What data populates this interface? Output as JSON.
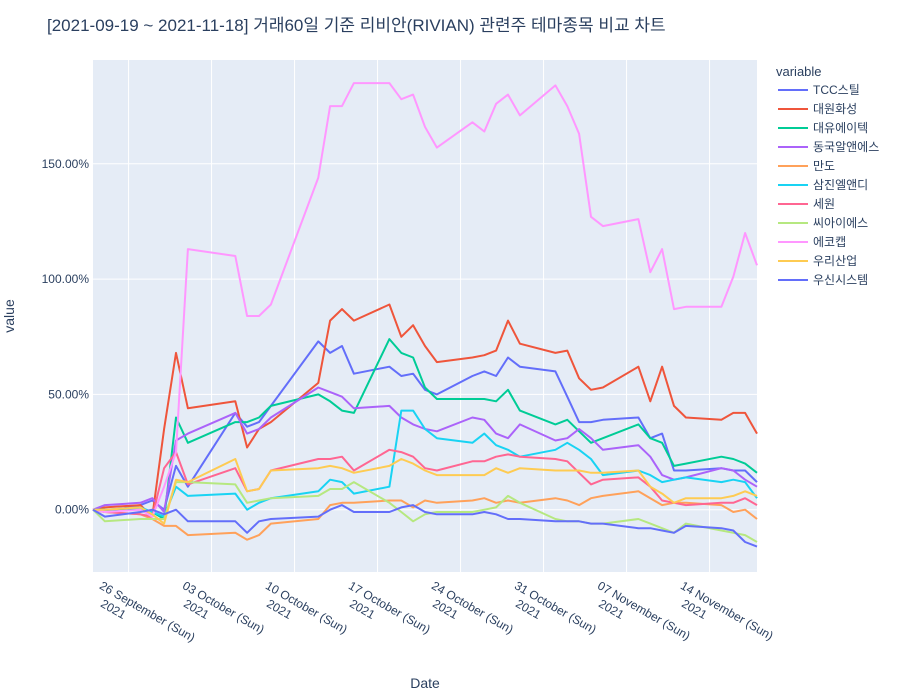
{
  "chart_data": {
    "type": "line",
    "title": "[2021-09-19 ~ 2021-11-18] 거래60일 기준 리비안(RIVIAN) 관련주 테마종목 비교 차트",
    "x_label": "Date",
    "y_label": "value",
    "legend_title": "variable",
    "legend": "right",
    "grid": true,
    "x": [
      "2021-09-23",
      "2021-09-24",
      "2021-09-27",
      "2021-09-28",
      "2021-09-29",
      "2021-09-30",
      "2021-10-01",
      "2021-10-05",
      "2021-10-06",
      "2021-10-07",
      "2021-10-08",
      "2021-10-12",
      "2021-10-13",
      "2021-10-14",
      "2021-10-15",
      "2021-10-18",
      "2021-10-19",
      "2021-10-20",
      "2021-10-21",
      "2021-10-22",
      "2021-10-25",
      "2021-10-26",
      "2021-10-27",
      "2021-10-28",
      "2021-10-29",
      "2021-11-01",
      "2021-11-02",
      "2021-11-03",
      "2021-11-04",
      "2021-11-05",
      "2021-11-08",
      "2021-11-09",
      "2021-11-10",
      "2021-11-11",
      "2021-11-12",
      "2021-11-15",
      "2021-11-16",
      "2021-11-17",
      "2021-11-18"
    ],
    "xlim": [
      "2021-09-23",
      "2021-11-18"
    ],
    "xticks": [
      {
        "value": "2021-09-26",
        "label": "26 September (Sun)\n2021"
      },
      {
        "value": "2021-10-03",
        "label": "03 October (Sun)\n2021"
      },
      {
        "value": "2021-10-10",
        "label": "10 October (Sun)\n2021"
      },
      {
        "value": "2021-10-17",
        "label": "17 October (Sun)\n2021"
      },
      {
        "value": "2021-10-24",
        "label": "24 October (Sun)\n2021"
      },
      {
        "value": "2021-10-31",
        "label": "31 October (Sun)\n2021"
      },
      {
        "value": "2021-11-07",
        "label": "07 November (Sun)\n2021"
      },
      {
        "value": "2021-11-14",
        "label": "14 November (Sun)\n2021"
      }
    ],
    "ylim": [
      -27,
      195
    ],
    "yticks": [
      {
        "value": 0,
        "label": "0.00%"
      },
      {
        "value": 50,
        "label": "50.00%"
      },
      {
        "value": 100,
        "label": "100.00%"
      },
      {
        "value": 150,
        "label": "150.00%"
      }
    ],
    "series": [
      {
        "name": "TCC스틸",
        "color": "#636efa",
        "values": [
          0,
          -1,
          2,
          4,
          0,
          19,
          10,
          42,
          36,
          38,
          45,
          73,
          68,
          71,
          59,
          62,
          58,
          59,
          52,
          50,
          58,
          60,
          58,
          66,
          62,
          60,
          49,
          38,
          38,
          39,
          40,
          31,
          33,
          17,
          17,
          18,
          17,
          17,
          12
        ]
      },
      {
        "name": "대원화성",
        "color": "#EF553B",
        "values": [
          0,
          1,
          2,
          -3,
          35,
          68,
          44,
          47,
          27,
          35,
          38,
          55,
          82,
          87,
          82,
          89,
          75,
          80,
          71,
          64,
          66,
          67,
          69,
          82,
          72,
          68,
          69,
          57,
          52,
          53,
          62,
          47,
          62,
          45,
          40,
          39,
          42,
          42,
          33
        ]
      },
      {
        "name": "대유에이텍",
        "color": "#00cc96",
        "values": [
          0,
          0,
          0,
          -1,
          -4,
          40,
          29,
          38,
          38,
          40,
          45,
          50,
          47,
          43,
          42,
          74,
          68,
          66,
          53,
          48,
          48,
          48,
          47,
          52,
          43,
          37,
          39,
          34,
          29,
          31,
          37,
          31,
          29,
          19,
          20,
          23,
          22,
          20,
          16
        ]
      },
      {
        "name": "동국알앤에스",
        "color": "#ab63fa",
        "values": [
          0,
          2,
          3,
          5,
          -1,
          30,
          33,
          42,
          33,
          35,
          40,
          53,
          51,
          49,
          44,
          45,
          40,
          37,
          35,
          34,
          40,
          39,
          33,
          31,
          37,
          30,
          31,
          35,
          31,
          26,
          28,
          23,
          15,
          13,
          14,
          18,
          17,
          13,
          10
        ]
      },
      {
        "name": "만도",
        "color": "#FFA15A",
        "values": [
          0,
          -1,
          -2,
          -4,
          -7,
          -7,
          -11,
          -10,
          -13,
          -11,
          -6,
          -4,
          2,
          3,
          3,
          4,
          4,
          1,
          4,
          3,
          4,
          5,
          3,
          4,
          3,
          5,
          4,
          2,
          5,
          6,
          8,
          5,
          2,
          3,
          3,
          2,
          -1,
          0,
          -4
        ]
      },
      {
        "name": "삼진엘앤디",
        "color": "#19d3f3",
        "values": [
          0,
          0,
          1,
          -1,
          -3,
          10,
          6,
          7,
          0,
          3,
          5,
          8,
          13,
          12,
          7,
          10,
          43,
          43,
          35,
          31,
          29,
          33,
          28,
          26,
          23,
          26,
          29,
          26,
          22,
          15,
          17,
          15,
          12,
          13,
          14,
          12,
          13,
          12,
          5
        ]
      },
      {
        "name": "세원",
        "color": "#FF6692",
        "values": [
          0,
          -1,
          -2,
          -3,
          18,
          25,
          11,
          18,
          8,
          9,
          17,
          22,
          22,
          23,
          17,
          26,
          25,
          23,
          18,
          17,
          21,
          21,
          23,
          24,
          23,
          22,
          21,
          16,
          11,
          13,
          14,
          10,
          4,
          3,
          2,
          3,
          3,
          5,
          2
        ]
      },
      {
        "name": "씨아이에스",
        "color": "#B6E880",
        "values": [
          0,
          -5,
          -4,
          -4,
          -4,
          12,
          12,
          11,
          3,
          4,
          5,
          6,
          9,
          9,
          12,
          3,
          -1,
          -5,
          -2,
          -1,
          -1,
          0,
          1,
          6,
          3,
          -4,
          -5,
          -5,
          -6,
          -6,
          -4,
          -6,
          -8,
          -10,
          -6,
          -9,
          -10,
          -11,
          -14
        ]
      },
      {
        "name": "에코캡",
        "color": "#FF97FF",
        "values": [
          0,
          -1,
          0,
          -3,
          10,
          25,
          113,
          110,
          84,
          84,
          89,
          144,
          175,
          175,
          185,
          185,
          178,
          180,
          166,
          157,
          168,
          164,
          176,
          180,
          171,
          184,
          175,
          163,
          127,
          123,
          126,
          103,
          113,
          87,
          88,
          88,
          101,
          120,
          106
        ]
      },
      {
        "name": "우리산업",
        "color": "#FECB52",
        "values": [
          0,
          0,
          1,
          -2,
          -6,
          13,
          12,
          22,
          8,
          9,
          17,
          18,
          19,
          18,
          16,
          19,
          22,
          20,
          17,
          15,
          15,
          15,
          18,
          16,
          18,
          17,
          17,
          17,
          16,
          16,
          17,
          10,
          7,
          3,
          5,
          5,
          6,
          8,
          6
        ]
      },
      {
        "name": "우신시스템",
        "color": "#636efa",
        "values": [
          0,
          -3,
          -1,
          0,
          -2,
          0,
          -5,
          -5,
          -10,
          -5,
          -4,
          -3,
          0,
          2,
          -1,
          -1,
          1,
          2,
          -1,
          -2,
          -2,
          -1,
          -2,
          -4,
          -4,
          -5,
          -5,
          -5,
          -6,
          -6,
          -8,
          -8,
          -9,
          -10,
          -7,
          -8,
          -9,
          -14,
          -16
        ]
      }
    ]
  }
}
